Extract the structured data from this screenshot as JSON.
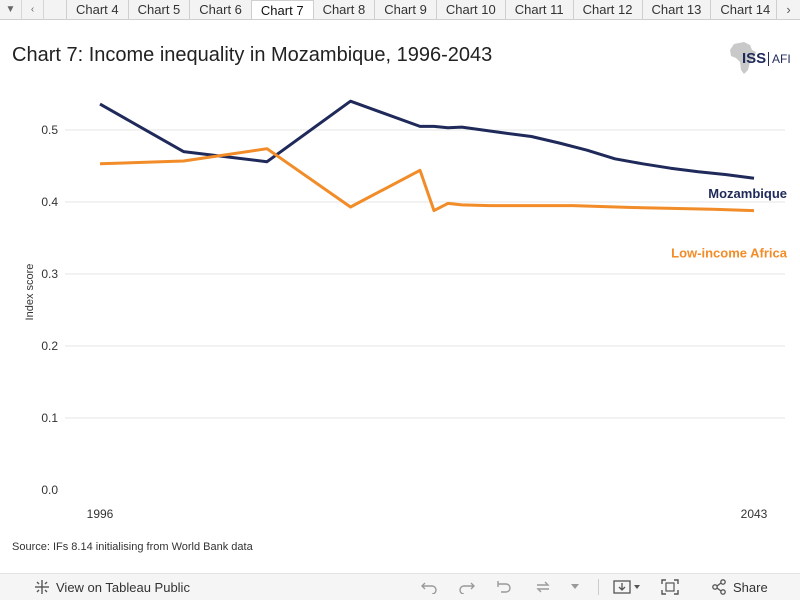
{
  "tabs": {
    "items": [
      "Chart 4",
      "Chart 5",
      "Chart 6",
      "Chart 7",
      "Chart 8",
      "Chart 9",
      "Chart 10",
      "Chart 11",
      "Chart 12",
      "Chart 13",
      "Chart 14"
    ],
    "active_index": 3
  },
  "logo": {
    "text": "ISS",
    "sub": "AFI"
  },
  "toolbar": {
    "view_label": "View on Tableau Public",
    "share_label": "Share"
  },
  "colors": {
    "mozambique": "#1f2a5a",
    "low_income_africa": "#f28c28",
    "gridline": "#e6e6e6"
  },
  "chart_data": {
    "type": "line",
    "title": "Chart 7: Income inequality in Mozambique, 1996-2043",
    "ylabel": "Index score",
    "xlabel": "",
    "source": "Source: IFs 8.14 initialising from World Bank data",
    "xlim": [
      1996,
      2043
    ],
    "ylim": [
      0,
      0.55
    ],
    "x_tick_labels": [
      "1996",
      "2043"
    ],
    "y_ticks": [
      0.0,
      0.1,
      0.2,
      0.3,
      0.4,
      0.5
    ],
    "y_tick_labels": [
      "0.0",
      "0.1",
      "0.2",
      "0.3",
      "0.4",
      "0.5"
    ],
    "grid": true,
    "legend": "direct-labels-right",
    "series": [
      {
        "name": "Mozambique",
        "x": [
          1996,
          2002,
          2008,
          2014,
          2019,
          2020,
          2021,
          2022,
          2025,
          2027,
          2029,
          2031,
          2033,
          2035,
          2037,
          2039,
          2041,
          2043
        ],
        "y": [
          0.536,
          0.47,
          0.456,
          0.54,
          0.505,
          0.505,
          0.503,
          0.504,
          0.496,
          0.491,
          0.482,
          0.472,
          0.46,
          0.453,
          0.447,
          0.442,
          0.438,
          0.433
        ]
      },
      {
        "name": "Low-income Africa",
        "x": [
          1996,
          2002,
          2008,
          2014,
          2019,
          2020,
          2021,
          2022,
          2024,
          2030,
          2035,
          2040,
          2043
        ],
        "y": [
          0.453,
          0.457,
          0.474,
          0.393,
          0.444,
          0.388,
          0.398,
          0.396,
          0.395,
          0.395,
          0.392,
          0.39,
          0.388
        ]
      }
    ]
  }
}
